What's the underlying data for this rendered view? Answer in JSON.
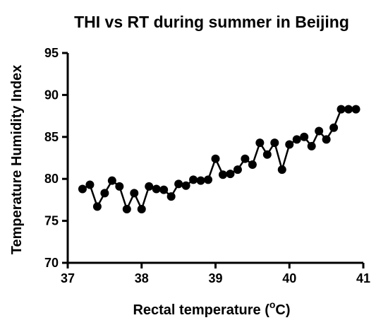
{
  "chart_data": {
    "type": "line",
    "title": "THI vs RT during summer in Beijing",
    "xlabel_main": "Rectal temperature (",
    "xlabel_super": "o",
    "xlabel_tail": "C)",
    "ylabel": "Temperature Humidity Index",
    "xlim": [
      37,
      41
    ],
    "ylim": [
      70,
      95
    ],
    "xticks": [
      37,
      38,
      39,
      40,
      41
    ],
    "yticks": [
      70,
      75,
      80,
      85,
      90,
      95
    ],
    "grid": false,
    "legend": "none",
    "marker_color": "#000000",
    "series": [
      {
        "x": [
          37.2,
          37.3,
          37.4,
          37.5,
          37.6,
          37.7,
          37.8,
          37.9,
          38.0,
          38.1,
          38.2,
          38.3,
          38.4,
          38.5,
          38.6,
          38.7,
          38.8,
          38.9,
          39.0,
          39.1,
          39.2,
          39.3,
          39.4,
          39.5,
          39.6,
          39.7,
          39.8,
          39.9,
          40.0,
          40.1,
          40.2,
          40.3,
          40.4,
          40.5,
          40.6,
          40.7,
          40.8,
          40.9
        ],
        "y": [
          78.8,
          79.3,
          76.7,
          78.3,
          79.8,
          79.1,
          76.4,
          78.3,
          76.4,
          79.1,
          78.8,
          78.7,
          77.9,
          79.4,
          79.2,
          79.9,
          79.8,
          79.9,
          82.4,
          80.5,
          80.6,
          81.1,
          82.4,
          81.7,
          84.3,
          82.9,
          84.3,
          81.1,
          84.1,
          84.7,
          85.0,
          83.9,
          85.7,
          84.7,
          86.1,
          88.3,
          88.3,
          88.3
        ]
      }
    ]
  }
}
